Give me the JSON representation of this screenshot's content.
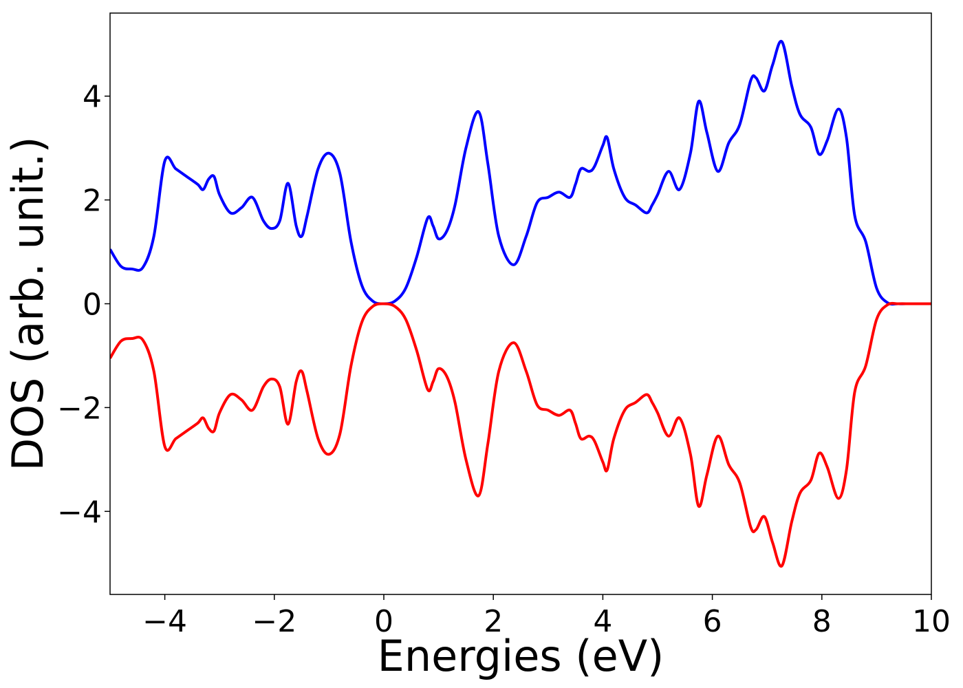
{
  "chart_data": {
    "type": "line",
    "title": "",
    "xlabel": "Energies (eV)",
    "ylabel": "DOS (arb. unit.)",
    "xlim": [
      -5,
      10
    ],
    "ylim": [
      -5.6,
      5.6
    ],
    "xticks": [
      -4,
      -2,
      0,
      2,
      4,
      6,
      8,
      10
    ],
    "xtick_labels": [
      "−4",
      "−2",
      "0",
      "2",
      "4",
      "6",
      "8",
      "10"
    ],
    "yticks": [
      -4,
      -2,
      0,
      2,
      4
    ],
    "ytick_labels": [
      "−4",
      "−2",
      "0",
      "2",
      "4"
    ],
    "grid": false,
    "legend": false,
    "series": [
      {
        "color": "#0000ff",
        "x": [
          -5.0,
          -4.8,
          -4.6,
          -4.4,
          -4.2,
          -4.0,
          -3.8,
          -3.6,
          -3.4,
          -3.3,
          -3.2,
          -3.1,
          -3.0,
          -2.8,
          -2.6,
          -2.4,
          -2.2,
          -2.05,
          -1.9,
          -1.75,
          -1.6,
          -1.5,
          -1.4,
          -1.2,
          -1.0,
          -0.8,
          -0.6,
          -0.4,
          -0.2,
          0.0,
          0.2,
          0.4,
          0.6,
          0.8,
          0.9,
          1.0,
          1.15,
          1.3,
          1.5,
          1.73,
          1.9,
          2.1,
          2.37,
          2.6,
          2.8,
          3.0,
          3.2,
          3.4,
          3.5,
          3.6,
          3.75,
          3.85,
          4.0,
          4.08,
          4.2,
          4.4,
          4.6,
          4.8,
          4.9,
          5.0,
          5.2,
          5.4,
          5.6,
          5.75,
          5.9,
          6.1,
          6.3,
          6.5,
          6.7,
          6.8,
          6.95,
          7.1,
          7.27,
          7.45,
          7.6,
          7.8,
          7.95,
          8.1,
          8.3,
          8.45,
          8.6,
          8.8,
          9.0,
          9.2,
          9.4,
          9.6,
          9.8,
          10.0
        ],
        "y": [
          1.05,
          0.72,
          0.67,
          0.7,
          1.3,
          2.75,
          2.6,
          2.45,
          2.3,
          2.2,
          2.4,
          2.45,
          2.1,
          1.75,
          1.85,
          2.05,
          1.6,
          1.45,
          1.6,
          2.32,
          1.5,
          1.3,
          1.7,
          2.6,
          2.9,
          2.5,
          1.2,
          0.35,
          0.05,
          0.0,
          0.05,
          0.3,
          0.9,
          1.65,
          1.5,
          1.25,
          1.4,
          1.9,
          3.0,
          3.7,
          2.7,
          1.3,
          0.75,
          1.3,
          1.95,
          2.05,
          2.15,
          2.05,
          2.3,
          2.6,
          2.55,
          2.65,
          3.05,
          3.2,
          2.6,
          2.05,
          1.9,
          1.75,
          1.9,
          2.1,
          2.55,
          2.2,
          2.9,
          3.9,
          3.3,
          2.55,
          3.1,
          3.45,
          4.3,
          4.35,
          4.1,
          4.6,
          5.05,
          4.2,
          3.65,
          3.4,
          2.88,
          3.15,
          3.75,
          3.2,
          1.7,
          1.2,
          0.3,
          0.02,
          0.0,
          0.0,
          0.0,
          0.0
        ]
      },
      {
        "color": "#ff0000",
        "x": [
          -5.0,
          -4.8,
          -4.6,
          -4.4,
          -4.2,
          -4.0,
          -3.8,
          -3.6,
          -3.4,
          -3.3,
          -3.2,
          -3.1,
          -3.0,
          -2.8,
          -2.6,
          -2.4,
          -2.2,
          -2.05,
          -1.9,
          -1.75,
          -1.6,
          -1.5,
          -1.4,
          -1.2,
          -1.0,
          -0.8,
          -0.6,
          -0.4,
          -0.2,
          0.0,
          0.2,
          0.4,
          0.6,
          0.8,
          0.9,
          1.0,
          1.15,
          1.3,
          1.5,
          1.73,
          1.9,
          2.1,
          2.37,
          2.6,
          2.8,
          3.0,
          3.2,
          3.4,
          3.5,
          3.6,
          3.75,
          3.85,
          4.0,
          4.08,
          4.2,
          4.4,
          4.6,
          4.8,
          4.9,
          5.0,
          5.2,
          5.4,
          5.6,
          5.75,
          5.9,
          6.1,
          6.3,
          6.5,
          6.7,
          6.8,
          6.95,
          7.1,
          7.27,
          7.45,
          7.6,
          7.8,
          7.95,
          8.1,
          8.3,
          8.45,
          8.6,
          8.8,
          9.0,
          9.2,
          9.4,
          9.6,
          9.8,
          10.0
        ],
        "y": [
          -1.05,
          -0.72,
          -0.67,
          -0.7,
          -1.3,
          -2.75,
          -2.6,
          -2.45,
          -2.3,
          -2.2,
          -2.4,
          -2.45,
          -2.1,
          -1.75,
          -1.85,
          -2.05,
          -1.6,
          -1.45,
          -1.6,
          -2.32,
          -1.5,
          -1.3,
          -1.7,
          -2.6,
          -2.9,
          -2.5,
          -1.2,
          -0.35,
          -0.05,
          0.0,
          -0.05,
          -0.3,
          -0.9,
          -1.65,
          -1.5,
          -1.25,
          -1.4,
          -1.9,
          -3.0,
          -3.7,
          -2.7,
          -1.3,
          -0.75,
          -1.3,
          -1.95,
          -2.05,
          -2.15,
          -2.05,
          -2.3,
          -2.6,
          -2.55,
          -2.65,
          -3.05,
          -3.2,
          -2.6,
          -2.05,
          -1.9,
          -1.75,
          -1.9,
          -2.1,
          -2.55,
          -2.2,
          -2.9,
          -3.9,
          -3.3,
          -2.55,
          -3.1,
          -3.45,
          -4.3,
          -4.35,
          -4.1,
          -4.6,
          -5.05,
          -4.2,
          -3.65,
          -3.4,
          -2.88,
          -3.15,
          -3.75,
          -3.2,
          -1.7,
          -1.2,
          -0.3,
          -0.02,
          0.0,
          0.0,
          0.0,
          0.0
        ]
      }
    ]
  }
}
